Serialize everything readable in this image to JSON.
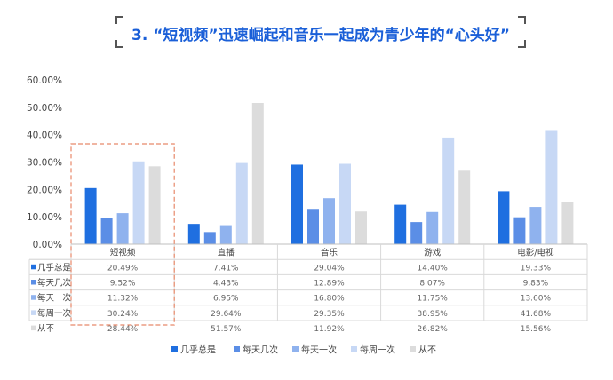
{
  "page": {
    "title": "3. “短视频”迅速崛起和音乐一起成为青少年的“心头好”"
  },
  "chart_data": {
    "type": "bar",
    "title": "",
    "xlabel": "",
    "ylabel": "",
    "ylim": [
      0,
      60
    ],
    "y_ticks": [
      "0.00%",
      "10.00%",
      "20.00%",
      "30.00%",
      "40.00%",
      "50.00%",
      "60.00%"
    ],
    "y_tick_values": [
      0,
      10,
      20,
      30,
      40,
      50,
      60
    ],
    "categories": [
      "短视频",
      "直播",
      "音乐",
      "游戏",
      "电影/电视"
    ],
    "series": [
      {
        "name": "几乎总是",
        "color": "#1f6fe0",
        "values": [
          20.49,
          7.41,
          29.04,
          14.4,
          19.33
        ],
        "labels": [
          "20.49%",
          "7.41%",
          "29.04%",
          "14.40%",
          "19.33%"
        ]
      },
      {
        "name": "每天几次",
        "color": "#5b8ee6",
        "values": [
          9.52,
          4.43,
          12.89,
          8.07,
          9.83
        ],
        "labels": [
          "9.52%",
          "4.43%",
          "12.89%",
          "8.07%",
          "9.83%"
        ]
      },
      {
        "name": "每天一次",
        "color": "#8fb2ee",
        "values": [
          11.32,
          6.95,
          16.8,
          11.75,
          13.6
        ],
        "labels": [
          "11.32%",
          "6.95%",
          "16.80%",
          "11.75%",
          "13.60%"
        ]
      },
      {
        "name": "每周一次",
        "color": "#c7d8f5",
        "values": [
          30.24,
          29.64,
          29.35,
          38.95,
          41.68
        ],
        "labels": [
          "30.24%",
          "29.64%",
          "29.35%",
          "38.95%",
          "41.68%"
        ]
      },
      {
        "name": "从不",
        "color": "#dcdcdc",
        "values": [
          28.44,
          51.57,
          11.92,
          26.82,
          15.56
        ],
        "labels": [
          "28.44%",
          "51.57%",
          "11.92%",
          "26.82%",
          "15.56%"
        ]
      }
    ],
    "legend_position": "bottom",
    "data_table": true,
    "highlight_category": "短视频",
    "highlight_color": "#e8896a",
    "grid": false
  }
}
